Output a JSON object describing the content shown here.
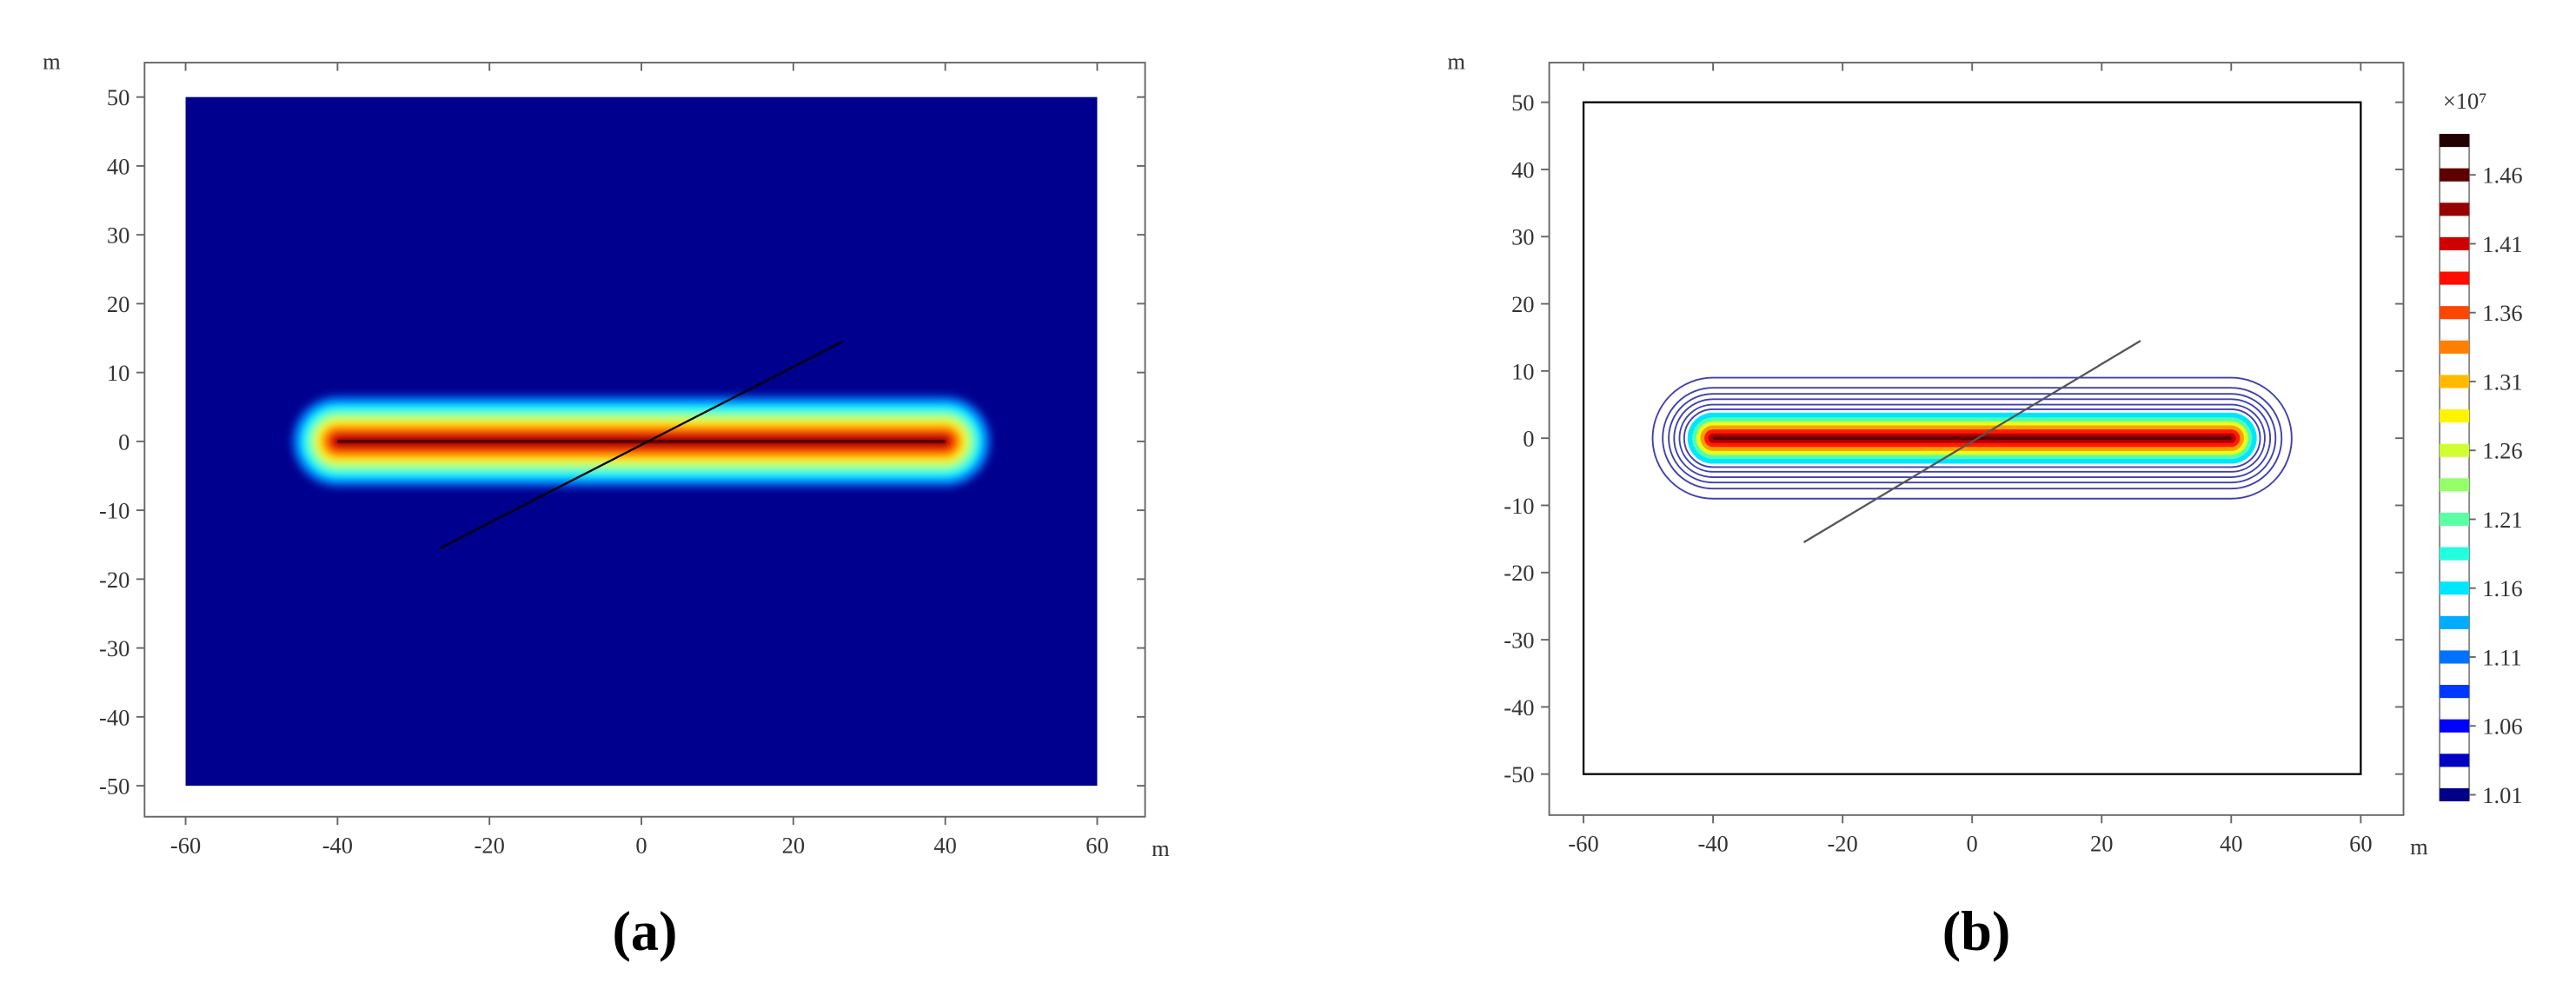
{
  "chart_data": [
    {
      "type": "heatmap",
      "caption": "(a)",
      "x_unit": "m",
      "y_unit": "m",
      "xlim": [
        -65.4,
        66.3
      ],
      "ylim": [
        -54.5,
        55
      ],
      "xticks": [
        -60,
        -40,
        -20,
        0,
        20,
        40,
        60
      ],
      "yticks": [
        -50,
        -40,
        -30,
        -20,
        -10,
        0,
        10,
        20,
        30,
        40,
        50
      ],
      "domain": {
        "x": [
          -60,
          60
        ],
        "y": [
          -50,
          50
        ]
      },
      "fracture": {
        "x": [
          -40,
          40
        ],
        "y": [
          0,
          0
        ]
      },
      "profile_line": {
        "x": [
          -26.5,
          26.5
        ],
        "y": [
          -15.5,
          14.5
        ]
      },
      "background_color": "#00008f",
      "line_color": "#000000"
    },
    {
      "type": "contour",
      "caption": "(b)",
      "x_unit": "m",
      "y_unit": "m",
      "xlim": [
        -65.3,
        66.6
      ],
      "ylim": [
        -56.1,
        55.9
      ],
      "xticks": [
        -60,
        -40,
        -20,
        0,
        20,
        40,
        60
      ],
      "yticks": [
        -50,
        -40,
        -30,
        -20,
        -10,
        0,
        10,
        20,
        30,
        40,
        50
      ],
      "domain": {
        "x": [
          -60,
          60
        ],
        "y": [
          -50,
          50
        ]
      },
      "fracture": {
        "x": [
          -40,
          40
        ],
        "y": [
          0,
          0
        ]
      },
      "profile_line": {
        "x": [
          -26,
          26
        ],
        "y": [
          -15.5,
          14.5
        ]
      },
      "contour_color": "#4040b0",
      "line_color": "#555555",
      "colorbar": {
        "multiplier_label": "×10⁷",
        "lim": [
          1.006,
          1.489
        ],
        "ticks": [
          1.01,
          1.06,
          1.11,
          1.16,
          1.21,
          1.26,
          1.31,
          1.36,
          1.41,
          1.46
        ]
      }
    }
  ]
}
